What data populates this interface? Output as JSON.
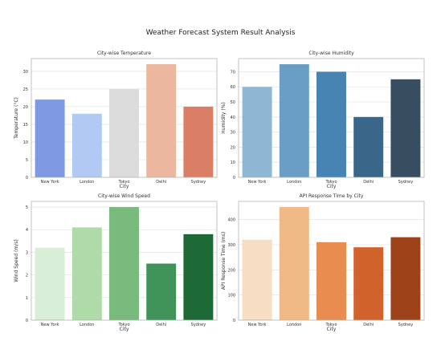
{
  "suptitle": "Weather Forecast System Result Analysis",
  "chart_data": [
    {
      "type": "bar",
      "title": "City-wise Temperature",
      "xlabel": "City",
      "ylabel": "Temperature (°C)",
      "categories": [
        "New York",
        "London",
        "Tokyo",
        "Delhi",
        "Sydney"
      ],
      "values": [
        22,
        18,
        25,
        32,
        20
      ],
      "ylim": [
        0,
        33.6
      ],
      "yticks": [
        0,
        5,
        10,
        15,
        20,
        25,
        30
      ],
      "colors": [
        "#7f9ae2",
        "#b1c9f3",
        "#dcdcdc",
        "#ecb79f",
        "#da7e66"
      ],
      "grid": true
    },
    {
      "type": "bar",
      "title": "City-wise Humidity",
      "xlabel": "City",
      "ylabel": "Humidity (%)",
      "categories": [
        "New York",
        "London",
        "Tokyo",
        "Delhi",
        "Sydney"
      ],
      "values": [
        60,
        75,
        70,
        40,
        65
      ],
      "ylim": [
        0,
        78.75
      ],
      "yticks": [
        0,
        10,
        20,
        30,
        40,
        50,
        60,
        70
      ],
      "colors": [
        "#8fb7d4",
        "#6a9ec4",
        "#4784b4",
        "#3a6789",
        "#374e61"
      ],
      "grid": true
    },
    {
      "type": "bar",
      "title": "City-wise Wind Speed",
      "xlabel": "City",
      "ylabel": "Wind Speed (m/s)",
      "categories": [
        "New York",
        "London",
        "Tokyo",
        "Delhi",
        "Sydney"
      ],
      "values": [
        3.2,
        4.1,
        5.0,
        2.5,
        3.8
      ],
      "ylim": [
        0,
        5.25
      ],
      "yticks": [
        0,
        1,
        2,
        3,
        4,
        5
      ],
      "colors": [
        "#d9eed6",
        "#afdba8",
        "#79ba7d",
        "#409459",
        "#1d6a37"
      ],
      "grid": true
    },
    {
      "type": "bar",
      "title": "API Response Time by City",
      "xlabel": "City",
      "ylabel": "API Response Time (ms)",
      "categories": [
        "New York",
        "London",
        "Tokyo",
        "Delhi",
        "Sydney"
      ],
      "values": [
        320,
        450,
        310,
        290,
        330
      ],
      "ylim": [
        0,
        472.5
      ],
      "yticks": [
        0,
        100,
        200,
        300,
        400
      ],
      "colors": [
        "#f6ddc4",
        "#efba86",
        "#e98c4f",
        "#d2622b",
        "#9e4219"
      ],
      "grid": true
    }
  ]
}
